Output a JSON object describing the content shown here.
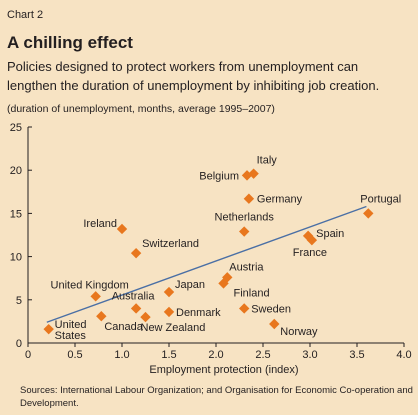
{
  "header": {
    "chart_label": "Chart 2",
    "title": "A chilling effect",
    "subtitle_line1": "Policies designed to protect workers from unemployment can",
    "subtitle_line2": "lengthen the duration of unemployment by inhibiting job creation.",
    "note": "(duration of unemployment, months, average 1995–2007)"
  },
  "footer": {
    "source_line1": "Sources: International Labour Organization; and Organisation for Economic Co-operation and",
    "source_line2": "Development."
  },
  "colors": {
    "marker": "#e8771e",
    "trend_line": "#4a6fa5",
    "axis": "#231f20",
    "background": "#f7e3c3"
  },
  "chart_data": {
    "type": "scatter",
    "xlabel": "Employment protection (index)",
    "ylabel": "",
    "xlim": [
      0,
      4.0
    ],
    "ylim": [
      0,
      25
    ],
    "x_ticks": [
      "0",
      "0.5",
      "1.0",
      "1.5",
      "2.0",
      "2.5",
      "3.0",
      "3.5",
      "4.0"
    ],
    "y_ticks": [
      "0",
      "5",
      "10",
      "15",
      "20",
      "25"
    ],
    "grid": false,
    "points": [
      {
        "label": "Italy",
        "x": 2.4,
        "y": 19.6
      },
      {
        "label": "Belgium",
        "x": 2.33,
        "y": 19.4
      },
      {
        "label": "Germany",
        "x": 2.35,
        "y": 16.7
      },
      {
        "label": "Portugal",
        "x": 3.62,
        "y": 15.0
      },
      {
        "label": "Ireland",
        "x": 1.0,
        "y": 13.2
      },
      {
        "label": "Netherlands",
        "x": 2.3,
        "y": 12.9
      },
      {
        "label": "Spain",
        "x": 2.98,
        "y": 12.4
      },
      {
        "label": "France",
        "x": 3.02,
        "y": 11.9
      },
      {
        "label": "Switzerland",
        "x": 1.15,
        "y": 10.4
      },
      {
        "label": "Austria",
        "x": 2.12,
        "y": 7.6
      },
      {
        "label": "Finland",
        "x": 2.08,
        "y": 6.9
      },
      {
        "label": "Japan",
        "x": 1.5,
        "y": 5.9
      },
      {
        "label": "United Kingdom",
        "x": 0.72,
        "y": 5.4
      },
      {
        "label": "Australia",
        "x": 1.15,
        "y": 4.0
      },
      {
        "label": "Sweden",
        "x": 2.3,
        "y": 4.0
      },
      {
        "label": "Denmark",
        "x": 1.5,
        "y": 3.6
      },
      {
        "label": "Canada",
        "x": 0.78,
        "y": 3.1
      },
      {
        "label": "New Zealand",
        "x": 1.25,
        "y": 3.0
      },
      {
        "label": "Norway",
        "x": 2.62,
        "y": 2.2
      },
      {
        "label": "United States",
        "x": 0.22,
        "y": 1.6
      }
    ],
    "trend_line": {
      "x": [
        0.2,
        3.6
      ],
      "y": [
        2.4,
        15.8
      ]
    }
  }
}
